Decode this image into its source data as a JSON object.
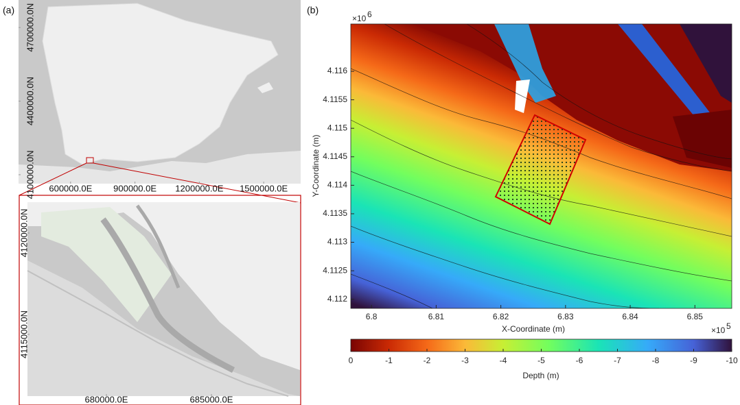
{
  "panel_a": {
    "label": "(a)",
    "overview_map": {
      "xlim": [
        357447,
        1672340
      ],
      "ylim": [
        4063551,
        4812150
      ],
      "xticks": [
        {
          "value": 600000,
          "label": "600000.0E"
        },
        {
          "value": 900000,
          "label": "900000.0E"
        },
        {
          "value": 1200000,
          "label": "1200000.0E"
        },
        {
          "value": 1500000,
          "label": "1500000.0E"
        }
      ],
      "yticks": [
        {
          "value": 4100000,
          "label": "4100000.0N"
        },
        {
          "value": 4400000,
          "label": "4400000.0N"
        },
        {
          "value": 4700000,
          "label": "4700000.0N"
        }
      ]
    },
    "detail_map": {
      "xlim": [
        676242,
        689216
      ],
      "ylim": [
        4111959,
        4121520
      ],
      "xticks": [
        {
          "value": 680000,
          "label": "680000.0E"
        },
        {
          "value": 685000,
          "label": "685000.0E"
        }
      ],
      "yticks": [
        {
          "value": 4115000,
          "label": "4115000.0N"
        },
        {
          "value": 4120000,
          "label": "4120000.0N"
        }
      ]
    }
  },
  "chart_data": {
    "type": "heatmap",
    "panel_label": "(b)",
    "xlabel": "X-Coordinate (m)",
    "ylabel": "Y-Coordinate (m)",
    "x_multiplier": "×10",
    "x_exponent": "5",
    "y_multiplier": "×10",
    "y_exponent": "6",
    "xlim": [
      6.7968,
      6.8557
    ],
    "ylim": [
      4.11184,
      4.11683
    ],
    "xticks": [
      6.8,
      6.81,
      6.82,
      6.83,
      6.84,
      6.85
    ],
    "yticks": [
      4.112,
      4.1125,
      4.113,
      4.1135,
      4.114,
      4.1145,
      4.115,
      4.1155,
      4.116
    ],
    "colorbar": {
      "label": "Depth (m)",
      "lim": [
        0,
        -10
      ],
      "ticks": [
        0,
        -1,
        -2,
        -3,
        -4,
        -5,
        -6,
        -7,
        -8,
        -9,
        -10
      ]
    }
  }
}
